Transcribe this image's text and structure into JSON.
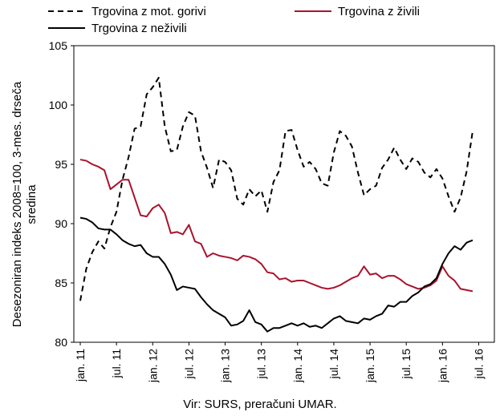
{
  "chart_data": {
    "type": "line",
    "ylabel_lines": [
      "Desezoniran indeks 2008=100, 3-mes. drseča",
      "sredina"
    ],
    "source": "Vir: SURS, preračuni UMAR.",
    "ylim": [
      80,
      105
    ],
    "yticks": [
      80,
      85,
      90,
      95,
      100,
      105
    ],
    "x_count": 68,
    "xticks": [
      {
        "i": 0,
        "label": "jan. 11"
      },
      {
        "i": 6,
        "label": "jul. 11"
      },
      {
        "i": 12,
        "label": "jan. 12"
      },
      {
        "i": 18,
        "label": "jul. 12"
      },
      {
        "i": 24,
        "label": "jan. 13"
      },
      {
        "i": 30,
        "label": "jul. 13"
      },
      {
        "i": 36,
        "label": "jan. 14"
      },
      {
        "i": 42,
        "label": "jul. 14"
      },
      {
        "i": 48,
        "label": "jan. 15"
      },
      {
        "i": 54,
        "label": "jul. 15"
      },
      {
        "i": 60,
        "label": "jan. 16"
      },
      {
        "i": 66,
        "label": "jul. 16"
      }
    ],
    "legend_position": "top",
    "series": [
      {
        "name": "Trgovina z mot. gorivi",
        "color": "#000000",
        "dash": "dashed",
        "values": [
          83.5,
          86.2,
          87.6,
          88.5,
          87.9,
          89.7,
          91.0,
          93.7,
          95.6,
          98.0,
          98.2,
          100.9,
          101.5,
          102.3,
          98.2,
          96.1,
          96.2,
          98.2,
          99.4,
          99.1,
          96.1,
          94.7,
          93.0,
          95.4,
          95.2,
          94.5,
          92.1,
          91.6,
          92.9,
          92.3,
          92.8,
          91.0,
          93.5,
          94.5,
          97.8,
          97.9,
          96.2,
          94.8,
          95.2,
          94.6,
          93.4,
          93.2,
          96.0,
          97.8,
          97.4,
          96.5,
          94.3,
          92.4,
          92.9,
          93.2,
          94.7,
          95.4,
          96.4,
          95.4,
          94.6,
          95.5,
          95.2,
          94.3,
          93.9,
          94.6,
          93.8,
          92.3,
          91.0,
          92.2,
          94.4,
          97.8
        ]
      },
      {
        "name": "Trgovina z živili",
        "color": "#a8132d",
        "dash": "solid",
        "values": [
          95.4,
          95.3,
          95.0,
          94.8,
          94.5,
          92.9,
          93.3,
          93.7,
          93.7,
          92.2,
          90.7,
          90.6,
          91.3,
          91.6,
          90.9,
          89.2,
          89.3,
          89.1,
          89.9,
          88.5,
          88.3,
          87.2,
          87.5,
          87.3,
          87.2,
          87.1,
          86.9,
          87.3,
          87.2,
          87.0,
          86.6,
          85.9,
          85.8,
          85.3,
          85.4,
          85.1,
          85.2,
          85.2,
          85.0,
          84.8,
          84.6,
          84.5,
          84.6,
          84.8,
          85.1,
          85.4,
          85.6,
          86.4,
          85.7,
          85.8,
          85.4,
          85.6,
          85.6,
          85.3,
          84.9,
          84.7,
          84.5,
          84.6,
          84.8,
          85.2,
          86.4,
          85.6,
          85.2,
          84.5,
          84.4,
          84.3
        ]
      },
      {
        "name": "Trgovina z neživili",
        "color": "#000000",
        "dash": "solid",
        "values": [
          90.5,
          90.4,
          90.1,
          89.6,
          89.5,
          89.5,
          89.1,
          88.6,
          88.3,
          88.1,
          88.2,
          87.5,
          87.2,
          87.2,
          86.6,
          85.7,
          84.4,
          84.7,
          84.6,
          84.5,
          83.8,
          83.2,
          82.7,
          82.4,
          82.1,
          81.4,
          81.5,
          81.8,
          82.7,
          81.7,
          81.5,
          80.9,
          81.2,
          81.2,
          81.4,
          81.6,
          81.4,
          81.6,
          81.3,
          81.4,
          81.2,
          81.6,
          82.0,
          82.2,
          81.8,
          81.7,
          81.6,
          82.0,
          81.9,
          82.2,
          82.4,
          83.1,
          83.0,
          83.4,
          83.4,
          83.9,
          84.2,
          84.7,
          84.9,
          85.4,
          86.6,
          87.5,
          88.1,
          87.8,
          88.4,
          88.6
        ]
      }
    ]
  }
}
